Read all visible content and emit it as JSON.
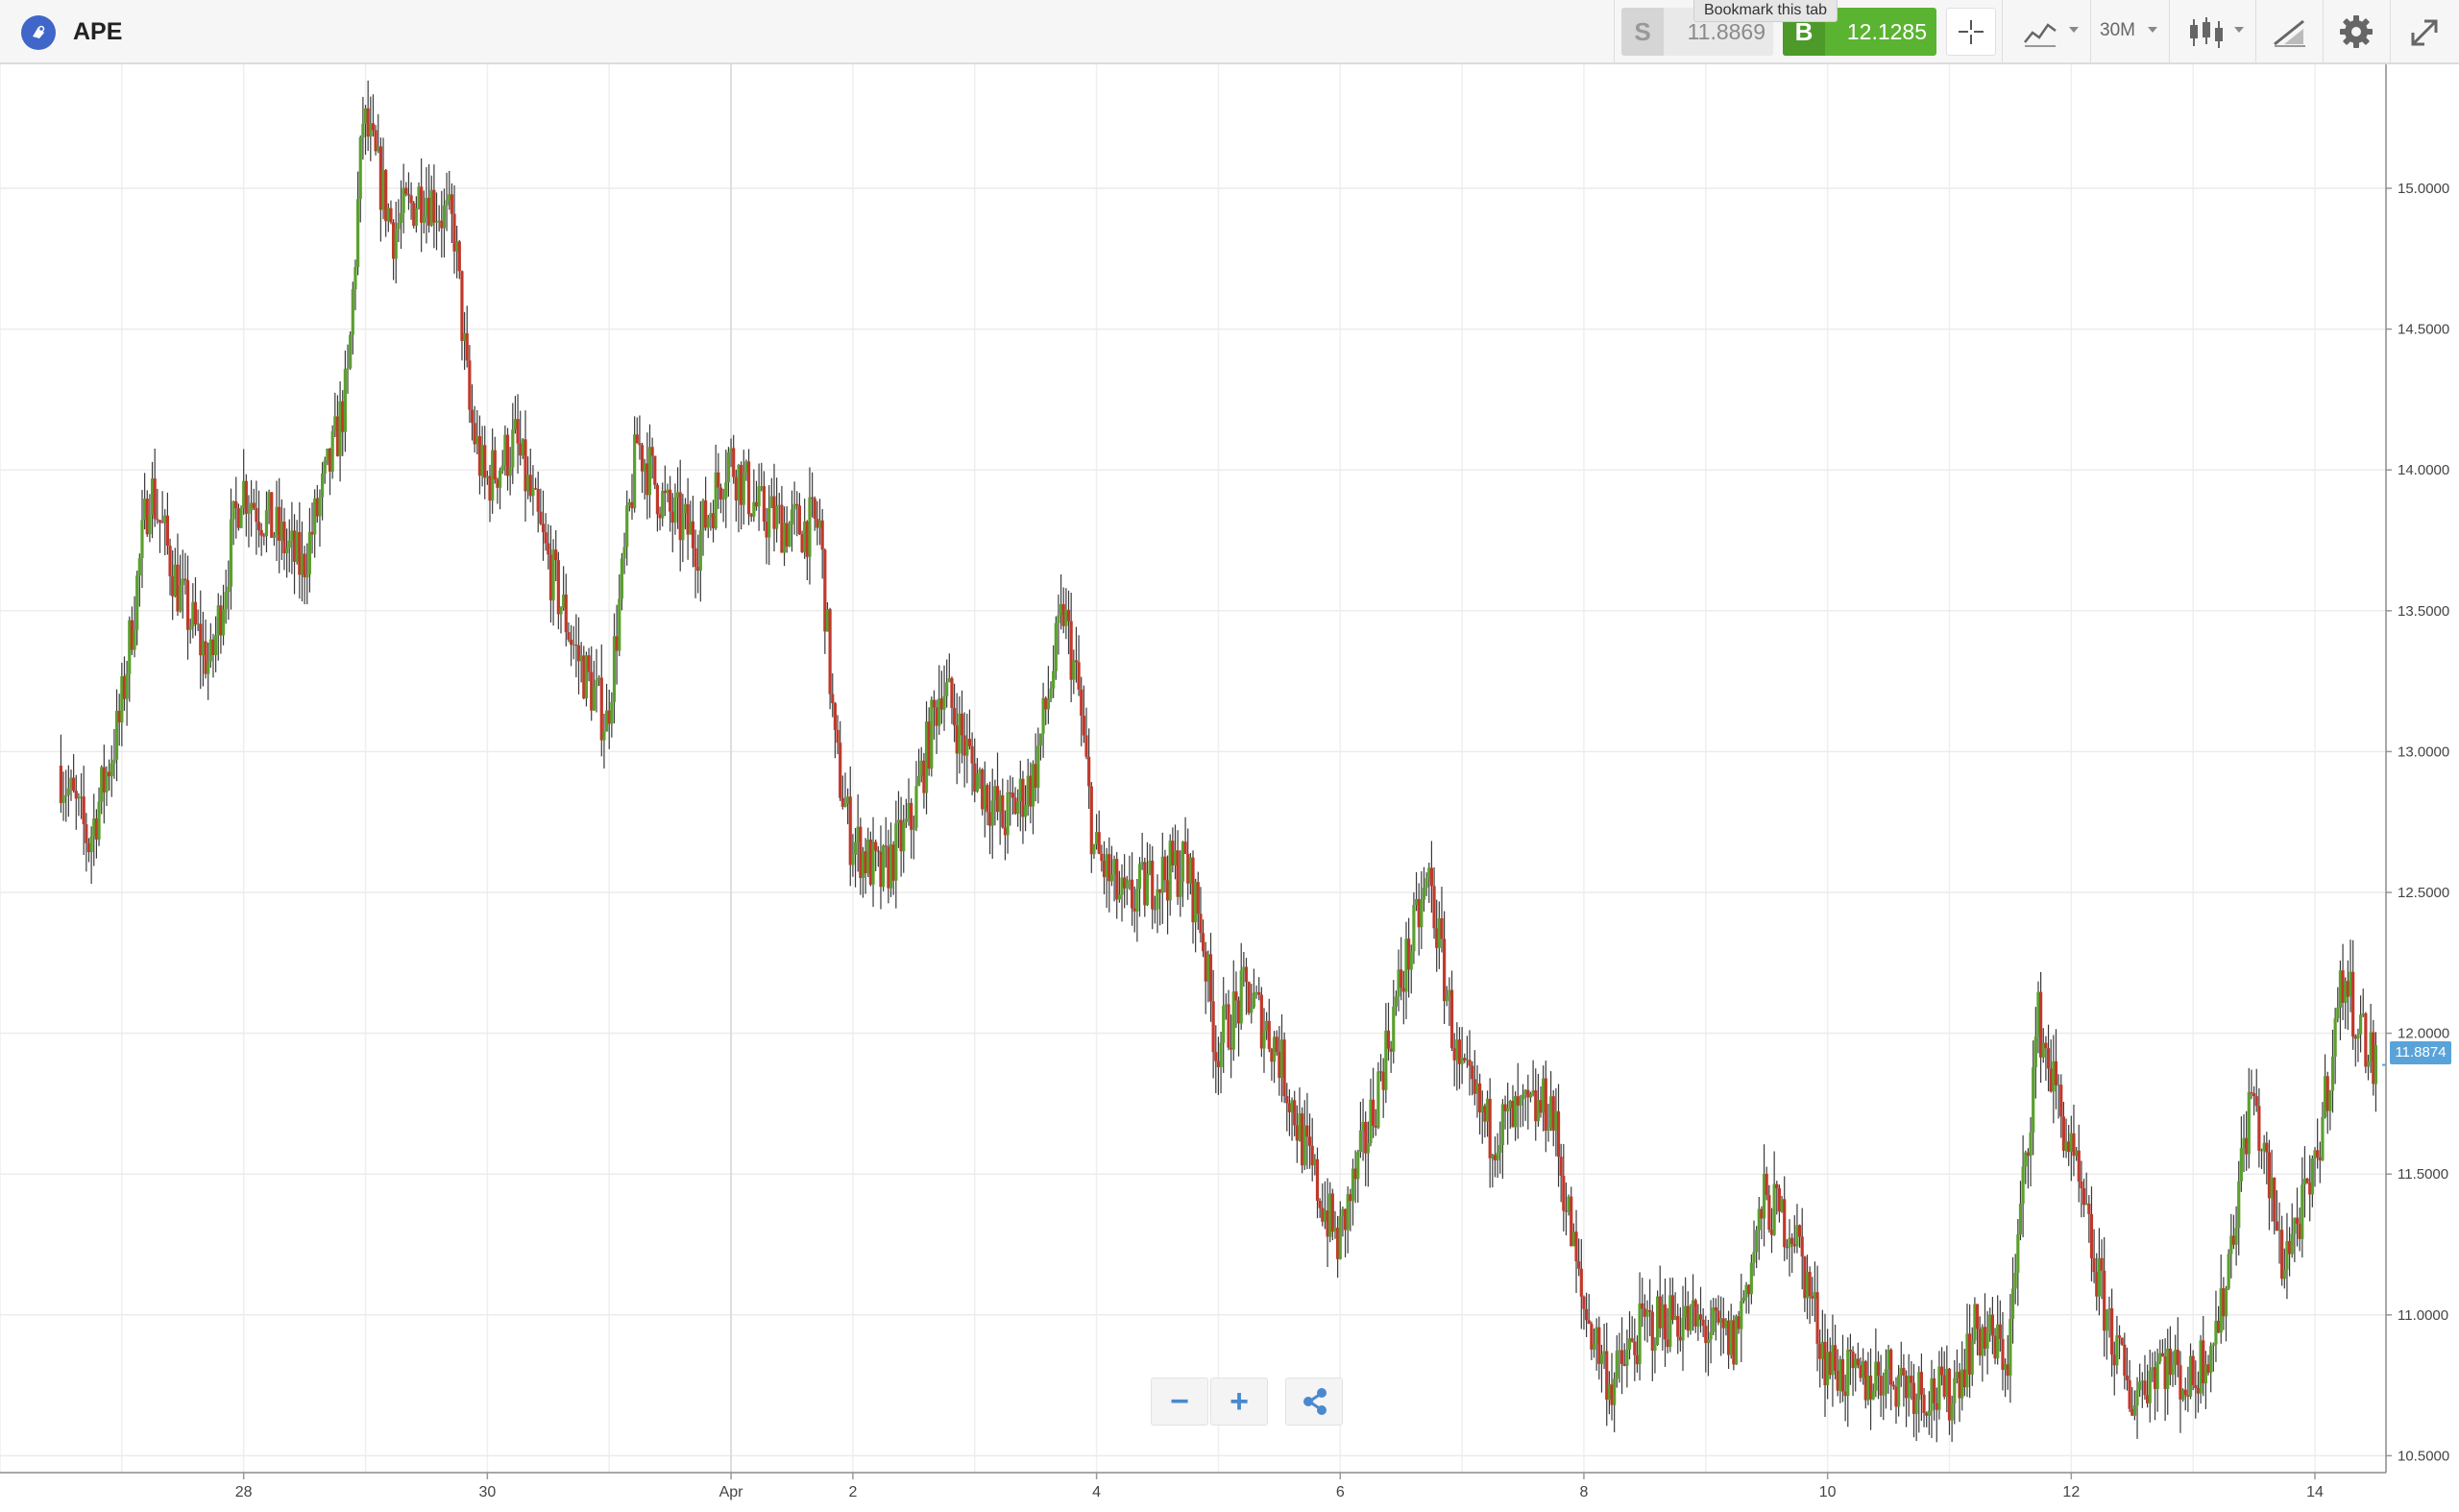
{
  "header": {
    "symbol": "APE",
    "tooltip": "Bookmark this tab",
    "sell_label": "S",
    "sell_price": "11.8869",
    "buy_label": "B",
    "buy_price": "12.1285",
    "timeframe": "30M"
  },
  "colors": {
    "buy": "#5bb332",
    "sell_bg": "#e9e9e9",
    "up_candle": "#5ba02e",
    "down_candle": "#c0392b",
    "wick": "#333333",
    "price_badge": "#5aa3d9"
  },
  "icons": [
    "app-logo-icon",
    "crosshair-icon",
    "line-chart-icon",
    "candlestick-icon",
    "draw-trend-icon",
    "gear-icon",
    "expand-icon",
    "minus-icon",
    "plus-icon",
    "share-icon"
  ],
  "chart_data": {
    "type": "candlestick",
    "title": "",
    "xlabel": "",
    "ylabel": "",
    "x_ticks": [
      "28",
      "30",
      "Apr",
      "2",
      "4",
      "6",
      "8",
      "10",
      "12",
      "14"
    ],
    "y_ticks": [
      "15.0000",
      "14.5000",
      "14.0000",
      "13.5000",
      "13.0000",
      "12.5000",
      "12.0000",
      "11.5000",
      "11.0000",
      "10.5000"
    ],
    "ylim": [
      10.44,
      15.44
    ],
    "x_range": [
      "Mar 26",
      "Apr 14"
    ],
    "grid": true,
    "current_price": "11.8874",
    "series": [
      {
        "anchors": [
          [
            "Mar 26 12:00",
            12.95
          ],
          [
            "Mar 26 18:00",
            12.68
          ],
          [
            "Mar 27 00:00",
            13.1
          ],
          [
            "Mar 27 06:00",
            13.95
          ],
          [
            "Mar 27 12:00",
            13.55
          ],
          [
            "Mar 27 18:00",
            13.3
          ],
          [
            "Mar 28 00:00",
            13.95
          ],
          [
            "Mar 28 06:00",
            13.8
          ],
          [
            "Mar 28 12:00",
            13.65
          ],
          [
            "Mar 28 18:00",
            14.05
          ],
          [
            "Mar 28 21:00",
            14.3
          ],
          [
            "Mar 29 00:00",
            15.25
          ],
          [
            "Mar 29 06:00",
            14.85
          ],
          [
            "Mar 29 12:00",
            15.0
          ],
          [
            "Mar 29 18:00",
            14.85
          ],
          [
            "Mar 29 21:00",
            14.2
          ],
          [
            "Mar 30 00:00",
            13.95
          ],
          [
            "Mar 30 06:00",
            14.1
          ],
          [
            "Mar 30 12:00",
            13.7
          ],
          [
            "Mar 30 18:00",
            13.35
          ],
          [
            "Mar 31 00:00",
            13.1
          ],
          [
            "Mar 31 06:00",
            14.1
          ],
          [
            "Mar 31 12:00",
            13.85
          ],
          [
            "Mar 31 18:00",
            13.75
          ],
          [
            "Apr 1 00:00",
            14.05
          ],
          [
            "Apr 1 06:00",
            13.85
          ],
          [
            "Apr 1 12:00",
            13.8
          ],
          [
            "Apr 1 18:00",
            13.8
          ],
          [
            "Apr 1 21:00",
            13.0
          ],
          [
            "Apr 2 00:00",
            12.7
          ],
          [
            "Apr 2 06:00",
            12.55
          ],
          [
            "Apr 2 12:00",
            12.75
          ],
          [
            "Apr 2 18:00",
            13.25
          ],
          [
            "Apr 3 00:00",
            12.95
          ],
          [
            "Apr 3 06:00",
            12.75
          ],
          [
            "Apr 3 12:00",
            12.9
          ],
          [
            "Apr 3 18:00",
            13.5
          ],
          [
            "Apr 3 21:00",
            13.2
          ],
          [
            "Apr 4 00:00",
            12.65
          ],
          [
            "Apr 4 06:00",
            12.45
          ],
          [
            "Apr 4 12:00",
            12.55
          ],
          [
            "Apr 4 18:00",
            12.6
          ],
          [
            "Apr 4 21:00",
            12.4
          ],
          [
            "Apr 5 00:00",
            11.95
          ],
          [
            "Apr 5 06:00",
            12.15
          ],
          [
            "Apr 5 12:00",
            11.95
          ],
          [
            "Apr 5 18:00",
            11.55
          ],
          [
            "Apr 6 00:00",
            11.25
          ],
          [
            "Apr 6 06:00",
            11.65
          ],
          [
            "Apr 6 12:00",
            12.15
          ],
          [
            "Apr 6 18:00",
            12.55
          ],
          [
            "Apr 7 00:00",
            11.85
          ],
          [
            "Apr 7 06:00",
            11.65
          ],
          [
            "Apr 7 12:00",
            11.7
          ],
          [
            "Apr 7 18:00",
            11.75
          ],
          [
            "Apr 8 00:00",
            11.05
          ],
          [
            "Apr 8 06:00",
            10.75
          ],
          [
            "Apr 8 12:00",
            10.95
          ],
          [
            "Apr 8 18:00",
            11.0
          ],
          [
            "Apr 9 00:00",
            10.95
          ],
          [
            "Apr 9 06:00",
            10.9
          ],
          [
            "Apr 9 12:00",
            11.4
          ],
          [
            "Apr 9 18:00",
            11.3
          ],
          [
            "Apr 10 00:00",
            10.85
          ],
          [
            "Apr 10 06:00",
            10.75
          ],
          [
            "Apr 10 12:00",
            10.8
          ],
          [
            "Apr 10 18:00",
            10.75
          ],
          [
            "Apr 11 00:00",
            10.7
          ],
          [
            "Apr 11 06:00",
            10.95
          ],
          [
            "Apr 11 12:00",
            10.85
          ],
          [
            "Apr 11 18:00",
            12.05
          ],
          [
            "Apr 12 00:00",
            11.6
          ],
          [
            "Apr 12 06:00",
            11.1
          ],
          [
            "Apr 12 12:00",
            10.7
          ],
          [
            "Apr 12 18:00",
            10.85
          ],
          [
            "Apr 13 00:00",
            10.75
          ],
          [
            "Apr 13 06:00",
            11.0
          ],
          [
            "Apr 13 12:00",
            11.8
          ],
          [
            "Apr 13 18:00",
            11.2
          ],
          [
            "Apr 14 00:00",
            11.45
          ],
          [
            "Apr 14 06:00",
            12.2
          ],
          [
            "Apr 14 12:00",
            11.89
          ]
        ]
      }
    ]
  }
}
